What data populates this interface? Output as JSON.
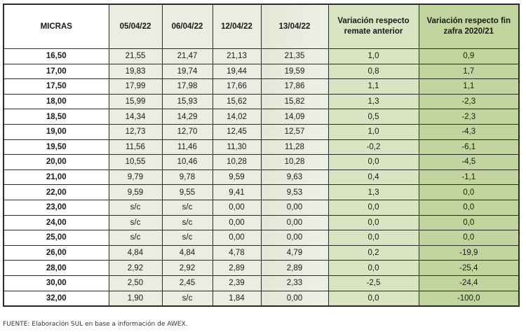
{
  "table": {
    "headers": [
      "MICRAS",
      "05/04/22",
      "06/04/22",
      "12/04/22",
      "13/04/22",
      "Variación respecto remate anterior",
      "Variación respecto fin zafra 2020/21"
    ],
    "rows": [
      [
        "16,50",
        "21,55",
        "21,47",
        "21,13",
        "21,35",
        "1,0",
        "0,9"
      ],
      [
        "17,00",
        "19,83",
        "19,74",
        "19,44",
        "19,59",
        "0,8",
        "1,7"
      ],
      [
        "17,50",
        "17,99",
        "17,98",
        "17,66",
        "17,86",
        "1,1",
        "1,1"
      ],
      [
        "18,00",
        "15,99",
        "15,93",
        "15,62",
        "15,82",
        "1,3",
        "-2,3"
      ],
      [
        "18,50",
        "14,34",
        "14,29",
        "14,02",
        "14,09",
        "0,5",
        "-2,3"
      ],
      [
        "19,00",
        "12,73",
        "12,70",
        "12,45",
        "12,57",
        "1,0",
        "-4,3"
      ],
      [
        "19,50",
        "11,56",
        "11,46",
        "11,30",
        "11,28",
        "-0,2",
        "-6,1"
      ],
      [
        "20,00",
        "10,55",
        "10,46",
        "10,28",
        "10,28",
        "0,0",
        "-4,5"
      ],
      [
        "21,00",
        "9,79",
        "9,78",
        "9,59",
        "9,63",
        "0,4",
        "-1,1"
      ],
      [
        "22,00",
        "9,59",
        "9,55",
        "9,41",
        "9,53",
        "1,3",
        "0,0"
      ],
      [
        "23,00",
        "s/c",
        "s/c",
        "0,00",
        "0,00",
        "0,0",
        "0,0"
      ],
      [
        "24,00",
        "s/c",
        "s/c",
        "0,00",
        "0,00",
        "0,0",
        "0,0"
      ],
      [
        "25,00",
        "s/c",
        "s/c",
        "0,00",
        "0,00",
        "0,0",
        "0,0"
      ],
      [
        "26,00",
        "4,84",
        "4,84",
        "4,78",
        "4,79",
        "0,2",
        "-19,9"
      ],
      [
        "28,00",
        "2,92",
        "2,92",
        "2,89",
        "2,89",
        "0,0",
        "-25,4"
      ],
      [
        "30,00",
        "2,50",
        "2,45",
        "2,39",
        "2,33",
        "-2,5",
        "-24,4"
      ],
      [
        "32,00",
        "1,90",
        "s/c",
        "1,84",
        "0,00",
        "0,0",
        "-100,0"
      ]
    ]
  },
  "colors": {
    "micras_bg": "#ffffff",
    "date_bg": "#ebede0",
    "var_remate_bg": "#d9e4c2",
    "var_zafra_bg": "#c3d59e",
    "border": "#2b2b2b"
  },
  "footnote": "FUENTE: Elaboración SUL en base a información de AWEX."
}
